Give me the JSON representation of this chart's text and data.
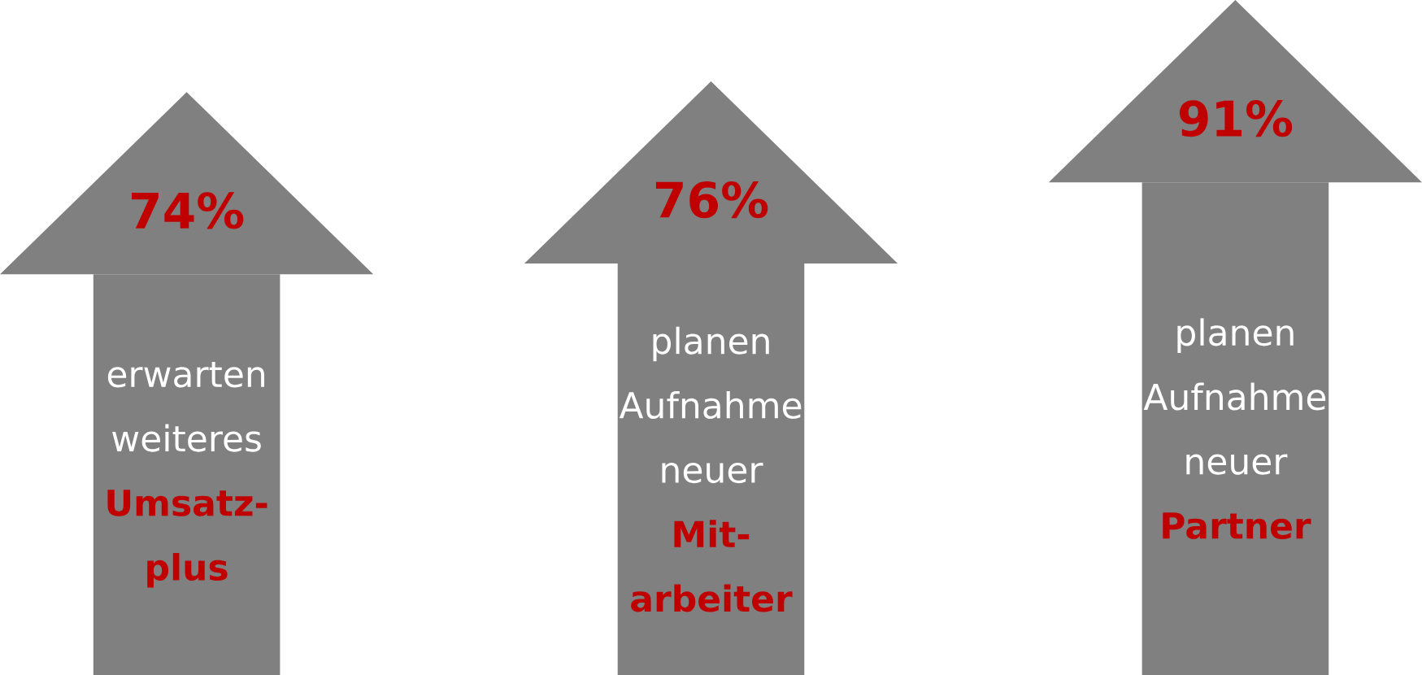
{
  "chart_data": {
    "type": "bar",
    "categories": [
      "erwarten weiteres **Umsatz-plus**",
      "planen Aufnahme neuer **Mit-arbeiter**",
      "planen Aufnahme neuer **Partner**"
    ],
    "values": [
      74,
      76,
      91
    ],
    "value_labels": [
      "74%",
      "76%",
      "91%"
    ],
    "color": "#808080"
  }
}
